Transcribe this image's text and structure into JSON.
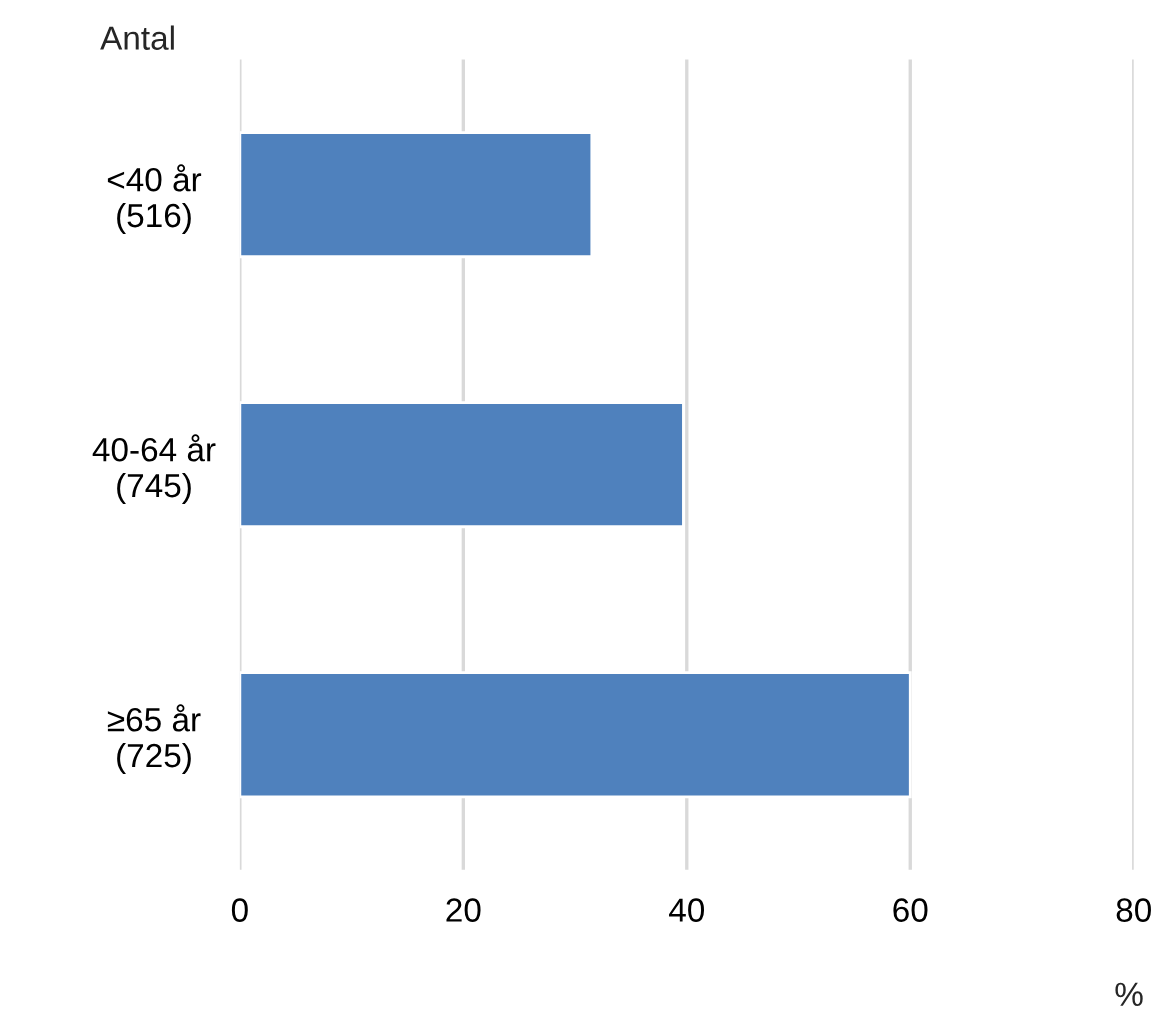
{
  "chart_data": {
    "type": "bar",
    "orientation": "horizontal",
    "categories": [
      "<40 år\n(516)",
      "40-64 år\n(745)",
      "≥65 år\n(725)"
    ],
    "values": [
      31.5,
      39.7,
      60
    ],
    "color": "#4f81bd",
    "xlim": [
      0,
      80
    ],
    "xticks": [
      0,
      20,
      40,
      60,
      80
    ],
    "ylabel": "Antal",
    "xlabel": "%",
    "grid": "x",
    "legend": false
  }
}
